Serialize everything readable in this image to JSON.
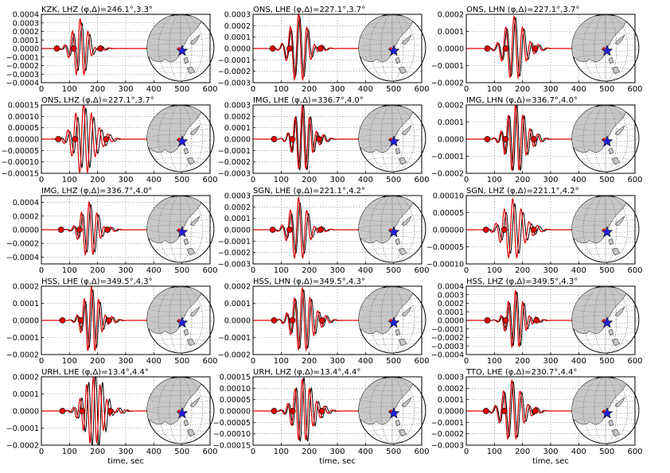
{
  "figure": {
    "xlabel": "time, sec",
    "xticks": [
      "0",
      "100",
      "200",
      "300",
      "400",
      "500",
      "600"
    ],
    "colors": {
      "observed": "#000000",
      "synthetic": "#dd0000",
      "marker": "#dd0000",
      "land": "#c8c8c8",
      "station": "#2222dd"
    }
  },
  "chart_data": [
    {
      "type": "line",
      "title": "KZK, LHZ (φ,Δ)=246.1°,3.3°",
      "ylim": [
        -0.0004,
        0.0004
      ],
      "yticks": [
        "0.0004",
        "0.0003",
        "0.0002",
        "0.0001",
        "0.0000",
        "−0.0001",
        "−0.0002",
        "−0.0003",
        "−0.0004"
      ],
      "xlim": [
        0,
        600
      ],
      "wave": {
        "center": 138,
        "amp": 0.00035,
        "width": 40,
        "period": 28,
        "obs_shift": 6,
        "obs_scale": 0.85
      },
      "markers": [
        55,
        115,
        210
      ]
    },
    {
      "type": "line",
      "title": "ONS, LHE (φ,Δ)=227.1°,3.7°",
      "ylim": [
        -0.0003,
        0.0003
      ],
      "yticks": [
        "0.0003",
        "0.0002",
        "0.0001",
        "0.0000",
        "−0.0001",
        "−0.0002",
        "−0.0003"
      ],
      "xlim": [
        0,
        600
      ],
      "wave": {
        "center": 162,
        "amp": 0.00031,
        "width": 45,
        "period": 30,
        "obs_shift": 4,
        "obs_scale": 0.9
      },
      "markers": [
        70,
        130,
        240
      ]
    },
    {
      "type": "line",
      "title": "ONS, LHN (φ,Δ)=227.1°,3.7°",
      "ylim": [
        -0.0002,
        0.0002
      ],
      "yticks": [
        "0.0002",
        "0.0001",
        "0.0000",
        "−0.0001",
        "−0.0002"
      ],
      "xlim": [
        0,
        600
      ],
      "wave": {
        "center": 170,
        "amp": 0.00019,
        "width": 48,
        "period": 30,
        "obs_shift": 5,
        "obs_scale": 0.95
      },
      "markers": [
        75,
        140,
        245
      ]
    },
    {
      "type": "line",
      "title": "ONS, LHZ (φ,Δ)=227.1°,3.7°",
      "ylim": [
        -0.00015,
        0.00015
      ],
      "yticks": [
        "0.00015",
        "0.00010",
        "0.00005",
        "0.00000",
        "−0.00005",
        "−0.00010",
        "−0.00015"
      ],
      "xlim": [
        0,
        600
      ],
      "wave": {
        "center": 150,
        "amp": 0.00016,
        "width": 50,
        "period": 28,
        "obs_shift": 8,
        "obs_scale": 0.85
      },
      "markers": [
        60,
        120,
        230
      ]
    },
    {
      "type": "line",
      "title": "IMG, LHE (φ,Δ)=336.7°,4.0°",
      "ylim": [
        -0.0003,
        0.0003
      ],
      "yticks": [
        "0.0003",
        "0.0002",
        "0.0001",
        "0.0000",
        "−0.0001",
        "−0.0002",
        "−0.0003"
      ],
      "xlim": [
        0,
        600
      ],
      "wave": {
        "center": 175,
        "amp": 0.00029,
        "width": 42,
        "period": 26,
        "obs_shift": 4,
        "obs_scale": 1.05
      },
      "markers": [
        75,
        140,
        235
      ]
    },
    {
      "type": "line",
      "title": "IMG, LHN (φ,Δ)=336.7°,4.0°",
      "ylim": [
        -0.0002,
        0.0002
      ],
      "yticks": [
        "0.0002",
        "0.0001",
        "0.0000",
        "−0.0001",
        "−0.0002"
      ],
      "xlim": [
        0,
        600
      ],
      "wave": {
        "center": 175,
        "amp": 0.0002,
        "width": 45,
        "period": 26,
        "obs_shift": 5,
        "obs_scale": 1.0
      },
      "markers": [
        75,
        140,
        240
      ]
    },
    {
      "type": "line",
      "title": "IMG, LHZ (φ,Δ)=336.7°,4.0°",
      "ylim": [
        -0.0005,
        0.0005
      ],
      "yticks": [
        "0.0004",
        "0.0002",
        "0.0000",
        "−0.0002",
        "−0.0004"
      ],
      "xlim": [
        0,
        600
      ],
      "wave": {
        "center": 170,
        "amp": 0.00041,
        "width": 42,
        "period": 28,
        "obs_shift": 6,
        "obs_scale": 0.9
      },
      "markers": [
        70,
        135,
        235
      ]
    },
    {
      "type": "line",
      "title": "SGN, LHE (φ,Δ)=221.1°,4.2°",
      "ylim": [
        -0.0003,
        0.0003
      ],
      "yticks": [
        "0.0003",
        "0.0002",
        "0.0001",
        "0.0000",
        "−0.0001",
        "−0.0002",
        "−0.0003"
      ],
      "xlim": [
        0,
        600
      ],
      "wave": {
        "center": 162,
        "amp": 0.00028,
        "width": 45,
        "period": 30,
        "obs_shift": 5,
        "obs_scale": 0.85
      },
      "markers": [
        70,
        130,
        240
      ]
    },
    {
      "type": "line",
      "title": "SGN, LHZ (φ,Δ)=221.1°,4.2°",
      "ylim": [
        -0.0001,
        0.0001
      ],
      "yticks": [
        "0.00010",
        "0.00005",
        "0.00000",
        "−0.00005",
        "−0.00010"
      ],
      "xlim": [
        0,
        600
      ],
      "wave": {
        "center": 165,
        "amp": 9e-05,
        "width": 50,
        "period": 30,
        "obs_shift": 7,
        "obs_scale": 0.85
      },
      "markers": [
        70,
        135,
        240
      ]
    },
    {
      "type": "line",
      "title": "HSS, LHE (φ,Δ)=349.5°,4.3°",
      "ylim": [
        -0.0002,
        0.0002
      ],
      "yticks": [
        "0.0002",
        "0.0001",
        "0.0000",
        "−0.0001",
        "−0.0002"
      ],
      "xlim": [
        0,
        600
      ],
      "wave": {
        "center": 178,
        "amp": 0.0002,
        "width": 40,
        "period": 26,
        "obs_shift": 5,
        "obs_scale": 0.9
      },
      "markers": [
        75,
        140,
        240
      ]
    },
    {
      "type": "line",
      "title": "HSS, LHN (φ,Δ)=349.5°,4.3°",
      "ylim": [
        -0.0002,
        0.0002
      ],
      "yticks": [
        "0.0002",
        "0.0001",
        "0.0000",
        "−0.0001",
        "−0.0002"
      ],
      "xlim": [
        0,
        600
      ],
      "wave": {
        "center": 175,
        "amp": 0.00019,
        "width": 48,
        "period": 28,
        "obs_shift": 5,
        "obs_scale": 0.95
      },
      "markers": [
        75,
        140,
        245
      ]
    },
    {
      "type": "line",
      "title": "HSS, LHZ (φ,Δ)=349.5°,4.3°",
      "ylim": [
        -0.0004,
        0.0004
      ],
      "yticks": [
        "0.0004",
        "0.0003",
        "0.0002",
        "0.0001",
        "0.0000",
        "−0.0001",
        "−0.0002",
        "−0.0003",
        "−0.0004"
      ],
      "xlim": [
        0,
        600
      ],
      "wave": {
        "center": 175,
        "amp": 0.00035,
        "width": 40,
        "period": 26,
        "obs_shift": 5,
        "obs_scale": 0.95
      },
      "markers": [
        75,
        140,
        250
      ]
    },
    {
      "type": "line",
      "title": "URH, LHE (φ,Δ)=13.4°,4.4°",
      "ylim": [
        -0.0002,
        0.0002
      ],
      "yticks": [
        "0.0002",
        "0.0001",
        "0.0000",
        "−0.0001",
        "−0.0002"
      ],
      "xlim": [
        0,
        600
      ],
      "wave": {
        "center": 185,
        "amp": 0.0002,
        "width": 50,
        "period": 24,
        "obs_shift": 8,
        "obs_scale": 1.1
      },
      "markers": [
        75,
        145,
        245
      ]
    },
    {
      "type": "line",
      "title": "URH, LHZ (φ,Δ)=13.4°,4.4°",
      "ylim": [
        -0.00015,
        0.00015
      ],
      "yticks": [
        "0.00015",
        "0.00010",
        "0.00005",
        "0.00000",
        "−0.00005",
        "−0.00010",
        "−0.00015"
      ],
      "xlim": [
        0,
        600
      ],
      "wave": {
        "center": 175,
        "amp": 0.00014,
        "width": 45,
        "period": 26,
        "obs_shift": 6,
        "obs_scale": 1.05
      },
      "markers": [
        75,
        140,
        245
      ]
    },
    {
      "type": "line",
      "title": "TTO, LHE (φ,Δ)=230.7°,4.4°",
      "ylim": [
        -0.0003,
        0.0003
      ],
      "yticks": [
        "0.0003",
        "0.0002",
        "0.0001",
        "0.0000",
        "−0.0001",
        "−0.0002",
        "−0.0003"
      ],
      "xlim": [
        0,
        600
      ],
      "wave": {
        "center": 162,
        "amp": 0.00027,
        "width": 48,
        "period": 30,
        "obs_shift": 5,
        "obs_scale": 0.95
      },
      "markers": [
        70,
        135,
        245
      ]
    }
  ]
}
